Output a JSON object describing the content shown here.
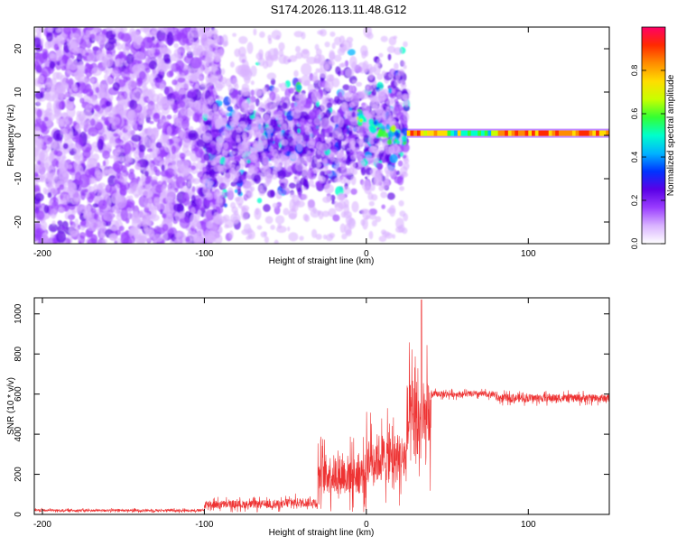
{
  "title": "S174.2026.113.11.48.G12",
  "chart_data": [
    {
      "type": "heatmap",
      "name": "spectrogram",
      "xlabel": "Height of straight line (km)",
      "ylabel": "Frequency (Hz)",
      "xlim": [
        -205,
        150
      ],
      "ylim": [
        -25,
        25
      ],
      "xticks": [
        -200,
        -100,
        0,
        100
      ],
      "yticks": [
        -20,
        -10,
        0,
        10,
        20
      ],
      "colorbar": {
        "label": "Normalized spectral amplitude",
        "range": [
          0,
          1
        ],
        "ticks": [
          "0.0",
          "0.2",
          "0.4",
          "0.6",
          "0.8"
        ],
        "colormap": [
          "#ffffff",
          "#d9b3ff",
          "#9a3dff",
          "#5a00e6",
          "#0033ff",
          "#00b3ff",
          "#00ffcc",
          "#33ff33",
          "#c8ff00",
          "#ffdd00",
          "#ff8c00",
          "#ff2a00",
          "#ff0066"
        ]
      },
      "features": [
        {
          "label": "Diffuse broadband noise",
          "x_range": [
            -205,
            -100
          ],
          "freq_range": [
            -25,
            25
          ],
          "amplitude": 0.15
        },
        {
          "label": "Scattered spectral blobs",
          "x_range": [
            -100,
            25
          ],
          "freq_range": [
            -15,
            10
          ],
          "amplitude": 0.35
        },
        {
          "label": "Narrow carrier line",
          "x_range": [
            25,
            150
          ],
          "freq": 0.5,
          "amplitude": 0.9
        }
      ]
    },
    {
      "type": "line",
      "name": "snr",
      "xlabel": "Height of straight line (km)",
      "ylabel": "SNR (10 * v/v)",
      "xlim": [
        -205,
        150
      ],
      "ylim": [
        0,
        1080
      ],
      "xticks": [
        -200,
        -100,
        0,
        100
      ],
      "yticks": [
        0,
        200,
        400,
        600,
        800,
        1000
      ],
      "color": "#ee3333",
      "segments": [
        {
          "x_range": [
            -205,
            -100
          ],
          "mean": 20,
          "noise": 12
        },
        {
          "x_range": [
            -100,
            -50
          ],
          "mean": 50,
          "noise": 40
        },
        {
          "x_range": [
            -50,
            -30
          ],
          "mean": 60,
          "noise": 45
        },
        {
          "x_range": [
            -30,
            0
          ],
          "mean": 200,
          "noise": 200
        },
        {
          "x_range": [
            0,
            25
          ],
          "mean": 280,
          "noise": 250
        },
        {
          "x_range": [
            25,
            40
          ],
          "mean": 450,
          "noise": 420
        },
        {
          "x_range": [
            40,
            80
          ],
          "mean": 600,
          "noise": 30
        },
        {
          "x_range": [
            80,
            150
          ],
          "mean": 580,
          "noise": 40
        }
      ],
      "peak": {
        "x": 34,
        "y": 1070
      }
    }
  ]
}
